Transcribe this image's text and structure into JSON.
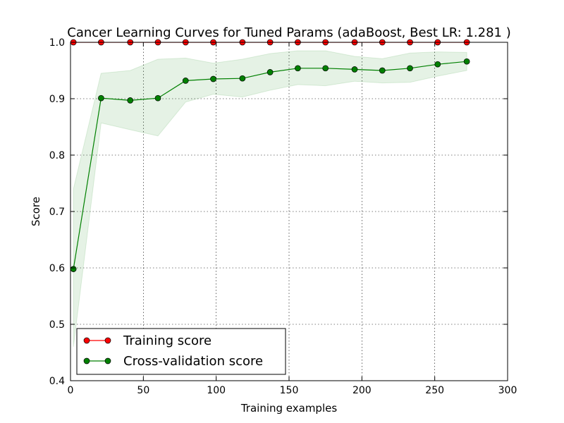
{
  "chart_data": {
    "type": "line",
    "title": "Cancer Learning Curves for Tuned Params (adaBoost, Best LR: 1.281 )",
    "xlabel": "Training examples",
    "ylabel": "Score",
    "xlim": [
      0,
      300
    ],
    "ylim": [
      0.4,
      1.0
    ],
    "xticks": [
      0,
      50,
      100,
      150,
      200,
      250,
      300
    ],
    "yticks": [
      0.4,
      0.5,
      0.6,
      0.7,
      0.8,
      0.9,
      1.0
    ],
    "xtick_labels": [
      "0",
      "50",
      "100",
      "150",
      "200",
      "250",
      "300"
    ],
    "ytick_labels": [
      "0.4",
      "0.5",
      "0.6",
      "0.7",
      "0.8",
      "0.9",
      "1.0"
    ],
    "grid": true,
    "legend_position": "lower-left",
    "x": [
      2,
      21,
      41,
      60,
      79,
      98,
      118,
      137,
      156,
      175,
      195,
      214,
      233,
      252,
      272
    ],
    "series": [
      {
        "name": "Training score",
        "color": "#ff0000",
        "values": [
          1.0,
          1.0,
          1.0,
          1.0,
          1.0,
          1.0,
          1.0,
          1.0,
          1.0,
          1.0,
          1.0,
          1.0,
          1.0,
          1.0,
          1.0
        ]
      },
      {
        "name": "Cross-validation score",
        "color": "#008000",
        "band_color": "#008000",
        "values": [
          0.598,
          0.901,
          0.897,
          0.901,
          0.932,
          0.935,
          0.936,
          0.947,
          0.954,
          0.954,
          0.952,
          0.95,
          0.954,
          0.961,
          0.966
        ],
        "lower": [
          0.46,
          0.857,
          0.845,
          0.834,
          0.894,
          0.908,
          0.903,
          0.915,
          0.925,
          0.923,
          0.931,
          0.928,
          0.929,
          0.94,
          0.95
        ],
        "upper": [
          0.74,
          0.945,
          0.95,
          0.97,
          0.972,
          0.963,
          0.97,
          0.98,
          0.985,
          0.985,
          0.975,
          0.971,
          0.981,
          0.983,
          0.982
        ]
      }
    ]
  }
}
